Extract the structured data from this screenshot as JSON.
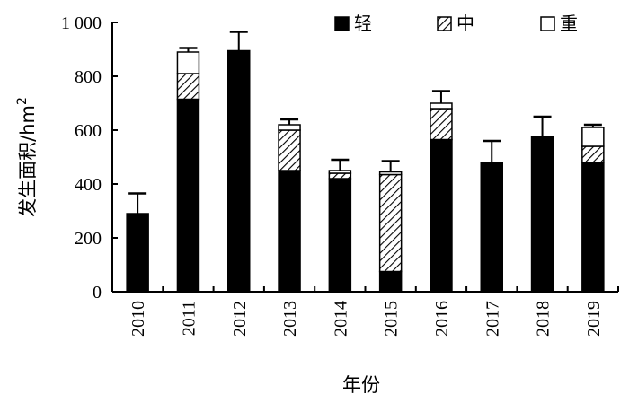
{
  "chart_data": {
    "type": "bar",
    "stacked": true,
    "categories": [
      "2010",
      "2011",
      "2012",
      "2013",
      "2014",
      "2015",
      "2016",
      "2017",
      "2018",
      "2019"
    ],
    "series": [
      {
        "name": "轻",
        "pattern": "solid",
        "values": [
          290,
          715,
          895,
          450,
          420,
          75,
          565,
          480,
          575,
          480
        ]
      },
      {
        "name": "中",
        "pattern": "hatch",
        "values": [
          0,
          95,
          0,
          150,
          20,
          360,
          115,
          0,
          0,
          60
        ]
      },
      {
        "name": "重",
        "pattern": "empty",
        "values": [
          0,
          80,
          0,
          20,
          10,
          10,
          20,
          0,
          0,
          70
        ]
      }
    ],
    "error_bars": [
      365,
      905,
      965,
      640,
      490,
      485,
      745,
      560,
      650,
      620
    ],
    "ylabel_text": "发生面积/hm",
    "ylabel_sup": "2",
    "xlabel": "年份",
    "ylim": [
      0,
      1000
    ],
    "yticks": [
      0,
      200,
      400,
      600,
      800,
      1000
    ],
    "ytick_labels": [
      "0",
      "200",
      "400",
      "600",
      "800",
      "1 000"
    ],
    "legend_position": "top-right",
    "grid": false,
    "colors": {
      "bar": "#000000",
      "background": "#ffffff"
    }
  }
}
